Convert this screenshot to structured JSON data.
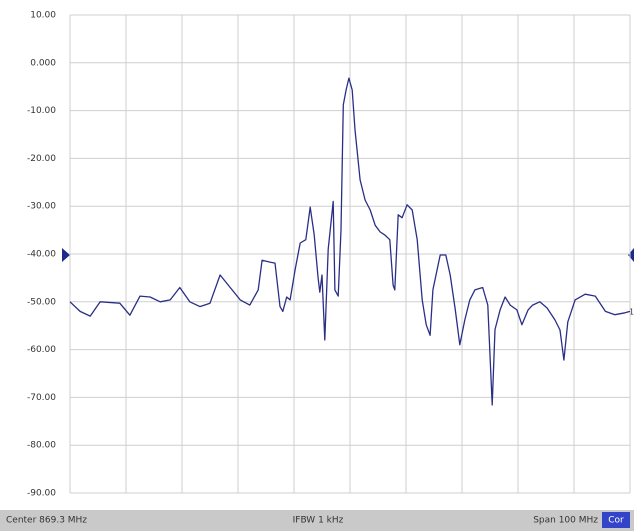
{
  "chart_data": {
    "type": "line",
    "color": "#2a2f86",
    "grid": true,
    "x": [
      819.3,
      821.1,
      822.9,
      824.7,
      828.2,
      830.0,
      831.8,
      833.6,
      835.4,
      837.2,
      838.9,
      840.7,
      842.5,
      844.3,
      846.1,
      847.9,
      849.7,
      851.4,
      852.9,
      853.6,
      855.0,
      855.9,
      856.8,
      857.3,
      858.0,
      858.6,
      859.5,
      860.4,
      861.4,
      862.2,
      862.9,
      863.6,
      863.9,
      864.3,
      864.8,
      865.4,
      866.3,
      866.6,
      867.2,
      867.7,
      868.1,
      868.6,
      869.1,
      869.7,
      870.2,
      871.1,
      872.0,
      872.9,
      873.8,
      874.7,
      875.5,
      876.4,
      877.0,
      877.3,
      877.9,
      878.6,
      879.5,
      880.4,
      881.3,
      882.2,
      882.9,
      883.6,
      884.1,
      885.4,
      886.4,
      887.2,
      888.1,
      888.9,
      889.8,
      890.7,
      891.6,
      893.0,
      893.9,
      894.7,
      895.2,
      896.1,
      897.0,
      897.9,
      899.1,
      900.0,
      901.1,
      901.9,
      903.2,
      904.5,
      905.9,
      906.8,
      907.5,
      908.2,
      909.5,
      911.3,
      913.1,
      914.9,
      916.6,
      918.4,
      919.3
    ],
    "values": [
      -50,
      -52,
      -53,
      -50,
      -50.3,
      -52.8,
      -48.8,
      -49,
      -50,
      -49.6,
      -47,
      -50,
      -51,
      -50.3,
      -44.4,
      -47,
      -49.6,
      -50.7,
      -47.5,
      -41.3,
      -41.7,
      -41.9,
      -51,
      -52,
      -49,
      -49.6,
      -43.3,
      -37.7,
      -37,
      -30.2,
      -36,
      -45,
      -48,
      -44.4,
      -58,
      -39,
      -29,
      -47.5,
      -48.8,
      -35,
      -8.8,
      -5.7,
      -3.2,
      -5.7,
      -14,
      -24.5,
      -28.7,
      -30.8,
      -34,
      -35.4,
      -36,
      -37,
      -46.5,
      -47.5,
      -31.8,
      -32.4,
      -29.7,
      -30.8,
      -37,
      -49.6,
      -54.8,
      -57,
      -47.5,
      -40.2,
      -40.2,
      -44.4,
      -51.7,
      -59,
      -53.8,
      -49.6,
      -47.5,
      -47,
      -50.7,
      -71.6,
      -55.8,
      -51.7,
      -49,
      -50.7,
      -51.7,
      -54.8,
      -51.7,
      -50.7,
      -50,
      -51.3,
      -53.8,
      -55.9,
      -62.2,
      -54.2,
      -49.6,
      -48.4,
      -48.8,
      -52,
      -52.7,
      -52.3,
      -52
    ],
    "xlim": [
      819.3,
      919.3
    ],
    "xticks": [
      819.3,
      829.3,
      839.3,
      849.3,
      859.3,
      869.3,
      879.3,
      889.3,
      899.3,
      909.3,
      919.3
    ],
    "ylim": [
      -90,
      10
    ],
    "yticks": [
      {
        "value": 10,
        "label": "10.00"
      },
      {
        "value": 0,
        "label": "0.000"
      },
      {
        "value": -10,
        "label": "-10.00"
      },
      {
        "value": -20,
        "label": "-20.00"
      },
      {
        "value": -30,
        "label": "-30.00"
      },
      {
        "value": -40,
        "label": "-40.00"
      },
      {
        "value": -50,
        "label": "-50.00"
      },
      {
        "value": -60,
        "label": "-60.00"
      },
      {
        "value": -70,
        "label": "-70.00"
      },
      {
        "value": -80,
        "label": "-80.00"
      },
      {
        "value": -90,
        "label": "-90.00"
      }
    ],
    "trace_marker": "1",
    "footer": {
      "center": "Center 869.3 MHz",
      "ifbw": "IFBW 1 kHz",
      "span": "Span 100 MHz",
      "status": "Cor"
    }
  }
}
